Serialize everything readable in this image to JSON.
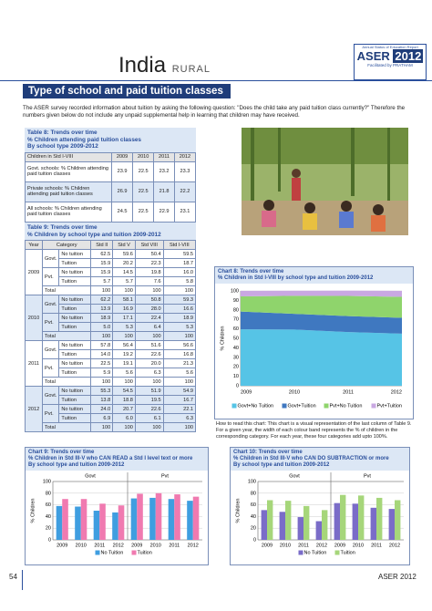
{
  "header": {
    "title": "India",
    "subtitle": "RURAL",
    "logo": {
      "line1": "Annual Status of Education Report",
      "brand": "ASER",
      "year": "2012",
      "credit": "Facilitated by PRATHAM"
    }
  },
  "section": {
    "title": "Type of school and paid tuition classes",
    "intro": "The ASER survey recorded information about tuition by asking the following question: \"Does the child take any paid tuition class currently?\" Therefore the numbers given below do not include any unpaid supplemental help in learning that children may have received."
  },
  "table8": {
    "title": [
      "Table 8: Trends over time",
      "% Children attending paid tuition classes",
      "By school type 2009-2012"
    ],
    "columns": [
      "Children in Std I-VIII",
      "2009",
      "2010",
      "2011",
      "2012"
    ],
    "rows": [
      {
        "label": "Govt. schools: % Children attending paid tuition classes",
        "values": [
          "23.9",
          "22.5",
          "23.2",
          "23.3"
        ]
      },
      {
        "label": "Private schools: % Children attending paid tuition classes",
        "values": [
          "26.9",
          "22.5",
          "21.8",
          "22.2"
        ]
      },
      {
        "label": "All schools: % Children attending paid tuition classes",
        "values": [
          "24.5",
          "22.5",
          "22.9",
          "23.1"
        ]
      }
    ]
  },
  "table9": {
    "title": [
      "Table 9: Trends over time",
      "% Children by school type and tuition 2009-2012"
    ],
    "columns": [
      "Year",
      "Category",
      "Std II",
      "Std V",
      "Std VIII",
      "Std I-VIII"
    ],
    "years": [
      {
        "year": "2009",
        "schools": [
          {
            "name": "Govt.",
            "rows": [
              {
                "category": "No tuition",
                "values": [
                  "62.5",
                  "59.6",
                  "50.4",
                  "59.5"
                ]
              },
              {
                "category": "Tuition",
                "values": [
                  "15.9",
                  "20.2",
                  "22.3",
                  "18.7"
                ]
              }
            ]
          },
          {
            "name": "Pvt.",
            "rows": [
              {
                "category": "No tuition",
                "values": [
                  "15.9",
                  "14.5",
                  "19.8",
                  "16.0"
                ]
              },
              {
                "category": "Tuition",
                "values": [
                  "5.7",
                  "5.7",
                  "7.6",
                  "5.8"
                ]
              }
            ]
          }
        ],
        "total": {
          "label": "Total",
          "values": [
            "100",
            "100",
            "100",
            "100"
          ]
        }
      },
      {
        "year": "2010",
        "schools": [
          {
            "name": "Govt.",
            "rows": [
              {
                "category": "No tuition",
                "values": [
                  "62.2",
                  "58.1",
                  "50.8",
                  "59.3"
                ]
              },
              {
                "category": "Tuition",
                "values": [
                  "13.9",
                  "16.9",
                  "28.0",
                  "16.6"
                ]
              }
            ]
          },
          {
            "name": "Pvt.",
            "rows": [
              {
                "category": "No tuition",
                "values": [
                  "18.9",
                  "17.1",
                  "22.4",
                  "18.9"
                ]
              },
              {
                "category": "Tuition",
                "values": [
                  "5.0",
                  "5.3",
                  "6.4",
                  "5.3"
                ]
              }
            ]
          }
        ],
        "total": {
          "label": "Total",
          "values": [
            "100",
            "100",
            "100",
            "100"
          ]
        }
      },
      {
        "year": "2011",
        "schools": [
          {
            "name": "Govt.",
            "rows": [
              {
                "category": "No tuition",
                "values": [
                  "57.8",
                  "56.4",
                  "51.6",
                  "56.6"
                ]
              },
              {
                "category": "Tuition",
                "values": [
                  "14.0",
                  "19.2",
                  "22.6",
                  "16.8"
                ]
              }
            ]
          },
          {
            "name": "Pvt.",
            "rows": [
              {
                "category": "No tuition",
                "values": [
                  "22.5",
                  "19.1",
                  "20.0",
                  "21.3"
                ]
              },
              {
                "category": "Tuition",
                "values": [
                  "5.9",
                  "5.6",
                  "6.3",
                  "5.6"
                ]
              }
            ]
          }
        ],
        "total": {
          "label": "Total",
          "values": [
            "100",
            "100",
            "100",
            "100"
          ]
        }
      },
      {
        "year": "2012",
        "schools": [
          {
            "name": "Govt.",
            "rows": [
              {
                "category": "No tuition",
                "values": [
                  "55.3",
                  "54.5",
                  "51.9",
                  "54.9"
                ]
              },
              {
                "category": "Tuition",
                "values": [
                  "13.8",
                  "18.8",
                  "19.5",
                  "16.7"
                ]
              }
            ]
          },
          {
            "name": "Pvt.",
            "rows": [
              {
                "category": "No tuition",
                "values": [
                  "24.0",
                  "20.7",
                  "22.6",
                  "22.1"
                ]
              },
              {
                "category": "Tuition",
                "values": [
                  "6.9",
                  "6.0",
                  "6.1",
                  "6.3"
                ]
              }
            ]
          }
        ],
        "total": {
          "label": "Total",
          "values": [
            "100",
            "100",
            "100",
            "100"
          ]
        }
      }
    ]
  },
  "chart8": {
    "type": "area",
    "title": [
      "Chart 8: Trends over time",
      "% Children in Std I-VIII by school type and tuition 2009-2012"
    ],
    "categories": [
      "2009",
      "2010",
      "2011",
      "2012"
    ],
    "ylabel": "% Children",
    "ylim": [
      0,
      100
    ],
    "yticks": [
      0,
      10,
      20,
      30,
      40,
      50,
      60,
      70,
      80,
      90,
      100
    ],
    "series": [
      {
        "name": "Govt+No Tuition",
        "color": "#56c4e6",
        "values": [
          59.5,
          59.3,
          56.6,
          54.9
        ]
      },
      {
        "name": "Govt+Tuition",
        "color": "#3f78c0",
        "values": [
          18.7,
          16.6,
          16.8,
          16.7
        ]
      },
      {
        "name": "Pvt+No Tuition",
        "color": "#8fd46c",
        "values": [
          16.0,
          18.9,
          21.3,
          22.1
        ]
      },
      {
        "name": "Pvt+Tuition",
        "color": "#c9a8e2",
        "values": [
          5.8,
          5.3,
          5.6,
          6.3
        ]
      }
    ],
    "note": "How to read this chart: This chart is a visual representation of the last column of Table 9. For a given year, the width of each colour band represents the % of children in the corresponding category. For each year, these four categories add upto 100%."
  },
  "chart9": {
    "type": "bar",
    "title": [
      "Chart 9: Trends over time",
      "% Children in Std III-V who CAN READ a Std I level text or more",
      "By school type and tuition 2009-2012"
    ],
    "groups": [
      "Govt",
      "Pvt"
    ],
    "categories": [
      "2009",
      "2010",
      "2011",
      "2012",
      "2009",
      "2010",
      "2011",
      "2012"
    ],
    "ylabel": "% Children",
    "ylim": [
      0,
      100
    ],
    "yticks": [
      0,
      20,
      40,
      60,
      80,
      100
    ],
    "series": [
      {
        "name": "No Tuition",
        "color": "#3f9ee0",
        "values": [
          58,
          57,
          50,
          47,
          71,
          72,
          70,
          67
        ]
      },
      {
        "name": "Tuition",
        "color": "#f07ab0",
        "values": [
          70,
          70,
          62,
          59,
          79,
          80,
          78,
          74
        ]
      }
    ]
  },
  "chart10": {
    "type": "bar",
    "title": [
      "Chart 10: Trends over time",
      "% Children in Std III-V who CAN DO SUBTRACTION or more",
      "By school type and tuition 2009-2012"
    ],
    "groups": [
      "Govt",
      "Pvt"
    ],
    "categories": [
      "2009",
      "2010",
      "2011",
      "2012",
      "2009",
      "2010",
      "2011",
      "2012"
    ],
    "ylabel": "% Children",
    "ylim": [
      0,
      100
    ],
    "yticks": [
      0,
      20,
      40,
      60,
      80,
      100
    ],
    "series": [
      {
        "name": "No Tuition",
        "color": "#7a6cc8",
        "values": [
          51,
          48,
          39,
          32,
          63,
          62,
          55,
          53
        ]
      },
      {
        "name": "Tuition",
        "color": "#a6d67a",
        "values": [
          68,
          67,
          58,
          51,
          77,
          76,
          72,
          68
        ]
      }
    ]
  },
  "footer": {
    "page": "54",
    "right": "ASER 2012"
  }
}
